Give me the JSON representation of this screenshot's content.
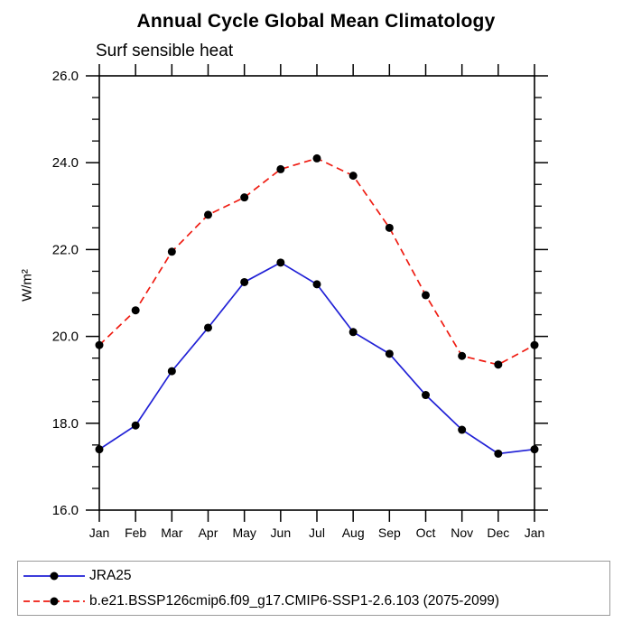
{
  "chart": {
    "title": "Annual Cycle Global Mean Climatology",
    "subtitle": "Surf sensible heat",
    "ylabel": "W/m²"
  },
  "chart_data": {
    "type": "line",
    "title": "Annual Cycle Global Mean Climatology",
    "subtitle": "Surf sensible heat",
    "xlabel": "",
    "ylabel": "W/m²",
    "categories": [
      "Jan",
      "Feb",
      "Mar",
      "Apr",
      "May",
      "Jun",
      "Jul",
      "Aug",
      "Sep",
      "Oct",
      "Nov",
      "Dec",
      "Jan"
    ],
    "ylim": [
      16.0,
      26.0
    ],
    "ytick_major": [
      16.0,
      18.0,
      20.0,
      22.0,
      24.0,
      26.0
    ],
    "ytick_labels": [
      "16.0",
      "18.0",
      "20.0",
      "22.0",
      "24.0",
      "26.0"
    ],
    "ytick_minor_step": 0.5,
    "grid": false,
    "legend_position": "bottom-box",
    "marker": {
      "shape": "filled-circle",
      "color": "#000000",
      "radius": 4.5
    },
    "series": [
      {
        "name": "JRA25",
        "color": "#2121d6",
        "dash": "solid",
        "values": [
          17.4,
          17.95,
          19.2,
          20.2,
          21.25,
          21.7,
          21.2,
          20.1,
          19.6,
          18.65,
          17.85,
          17.3,
          17.4
        ]
      },
      {
        "name": "b.e21.BSSP126cmip6.f09_g17.CMIP6-SSP1-2.6.103 (2075-2099)",
        "color": "#ef1c12",
        "dash": "dashed",
        "values": [
          19.8,
          20.6,
          21.95,
          22.8,
          23.2,
          23.85,
          24.1,
          23.7,
          22.5,
          20.95,
          19.55,
          19.35,
          19.8
        ]
      }
    ]
  },
  "legend": {
    "items": [
      {
        "label": "JRA25",
        "color": "#2121d6",
        "dash": "solid"
      },
      {
        "label": "b.e21.BSSP126cmip6.f09_g17.CMIP6-SSP1-2.6.103 (2075-2099)",
        "color": "#ef1c12",
        "dash": "dashed"
      }
    ]
  }
}
